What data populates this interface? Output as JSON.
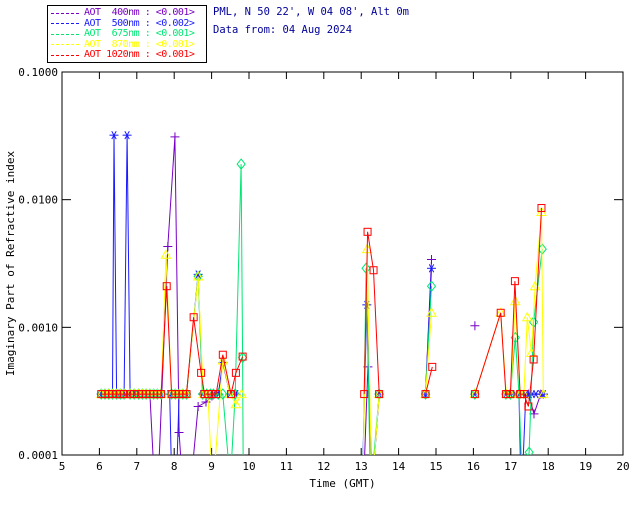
{
  "header": {
    "location_line": "PML, N 50 22', W 04 08', Alt 0m",
    "data_line": "Data from: 04 Aug 2024",
    "text_color": "#000099"
  },
  "chart_data": {
    "type": "line",
    "title": "",
    "xlabel": "Time (GMT)",
    "ylabel": "Imaginary Part of Refractive index",
    "xlim": [
      5,
      20
    ],
    "ylim": [
      0.0001,
      0.1
    ],
    "y_scale": "log",
    "grid": false,
    "legend_position": "top-left",
    "x_ticks": [
      5,
      6,
      7,
      8,
      9,
      10,
      11,
      12,
      13,
      14,
      15,
      16,
      17,
      18,
      19,
      20
    ],
    "y_ticks": [
      {
        "value": 0.1,
        "label": "0.1000"
      },
      {
        "value": 0.01,
        "label": "0.0100"
      },
      {
        "value": 0.001,
        "label": "0.0010"
      },
      {
        "value": 0.0001,
        "label": "0.0001"
      }
    ],
    "series": [
      {
        "name": "AOT 400nm",
        "legend_text": "AOT  400nm : <0.001>",
        "aot_value": "<0.001>",
        "color": "#7700c4",
        "marker": "plus",
        "points": [
          [
            6.05,
            0.0003
          ],
          [
            6.15,
            0.0003
          ],
          [
            6.25,
            0.0003
          ],
          [
            6.35,
            0.0003
          ],
          [
            6.44,
            0.0003
          ],
          [
            6.52,
            0.0003
          ],
          [
            6.6,
            0.0003
          ],
          [
            6.69,
            0.0003
          ],
          [
            6.8,
            0.0003
          ],
          [
            6.93,
            0.0003
          ],
          [
            7.05,
            0.0003
          ],
          [
            7.15,
            0.0003
          ],
          [
            7.25,
            0.0003
          ],
          [
            7.35,
            0.0003
          ],
          [
            7.46,
            7e-05
          ],
          [
            7.58,
            7e-05
          ],
          [
            7.83,
            0.0043
          ],
          [
            8.02,
            0.031
          ],
          [
            8.13,
            0.00015
          ],
          [
            8.22,
            6e-05
          ],
          [
            8.45,
            6e-05
          ],
          [
            8.64,
            0.00024
          ],
          [
            8.85,
            0.00026
          ],
          [
            9.01,
            0.00029
          ],
          [
            13.08,
            8e-05
          ],
          [
            13.18,
            0.00049
          ],
          [
            13.3,
            6e-05
          ],
          [
            13.48,
            0.0003
          ],
          [
            14.72,
            0.0003
          ],
          [
            14.88,
            0.0034
          ],
          [
            16.04,
            0.00103
          ],
          [
            17.25,
            0.0003
          ],
          [
            17.35,
            0.0003
          ],
          [
            17.47,
            0.0003
          ],
          [
            17.62,
            0.00021
          ],
          [
            17.8,
            0.0003
          ],
          [
            17.87,
            0.0003
          ]
        ]
      },
      {
        "name": "AOT 500nm",
        "legend_text": "AOT  500nm : <0.002>",
        "aot_value": "<0.002>",
        "color": "#1a1aff",
        "marker": "asterisk",
        "points": [
          [
            6.05,
            0.0003
          ],
          [
            6.15,
            0.0003
          ],
          [
            6.25,
            0.0003
          ],
          [
            6.35,
            0.0003
          ],
          [
            6.39,
            0.032
          ],
          [
            6.46,
            0.0003
          ],
          [
            6.56,
            0.0003
          ],
          [
            6.66,
            0.0003
          ],
          [
            6.74,
            0.032
          ],
          [
            6.82,
            0.0003
          ],
          [
            6.93,
            0.0003
          ],
          [
            7.05,
            0.0003
          ],
          [
            7.15,
            0.0003
          ],
          [
            7.25,
            0.0003
          ],
          [
            7.35,
            0.0003
          ],
          [
            7.45,
            0.0003
          ],
          [
            7.55,
            0.0003
          ],
          [
            7.65,
            0.0003
          ],
          [
            7.88,
            0.0003
          ],
          [
            7.94,
            5e-05
          ],
          [
            8.05,
            5e-05
          ],
          [
            8.13,
            0.0003
          ],
          [
            8.23,
            0.0003
          ],
          [
            8.33,
            0.0003
          ],
          [
            8.64,
            0.0026
          ],
          [
            8.76,
            0.0003
          ],
          [
            8.87,
            0.0003
          ],
          [
            8.97,
            0.0003
          ],
          [
            9.05,
            0.0003
          ],
          [
            9.18,
            0.0003
          ],
          [
            9.3,
            0.00053
          ],
          [
            9.49,
            0.0003
          ],
          [
            9.63,
            0.0003
          ],
          [
            9.65,
            0.0003
          ],
          [
            13.04,
            8e-05
          ],
          [
            13.15,
            0.0015
          ],
          [
            13.28,
            5e-05
          ],
          [
            13.48,
            0.0003
          ],
          [
            14.72,
            0.0003
          ],
          [
            14.88,
            0.0029
          ],
          [
            16.04,
            0.0003
          ],
          [
            16.87,
            0.0003
          ],
          [
            16.99,
            0.0003
          ],
          [
            17.12,
            0.0003
          ],
          [
            17.22,
            0.0003
          ],
          [
            17.28,
            4e-05
          ],
          [
            17.4,
            0.0003
          ],
          [
            17.5,
            0.0003
          ],
          [
            17.57,
            0.0003
          ],
          [
            17.67,
            0.0003
          ],
          [
            17.8,
            0.0003
          ],
          [
            17.87,
            0.0003
          ]
        ]
      },
      {
        "name": "AOT 675nm",
        "legend_text": "AOT  675nm : <0.001>",
        "aot_value": "<0.001>",
        "color": "#00e673",
        "marker": "diamond",
        "points": [
          [
            6.05,
            0.0003
          ],
          [
            6.15,
            0.0003
          ],
          [
            6.25,
            0.0003
          ],
          [
            6.35,
            0.0003
          ],
          [
            6.46,
            0.0003
          ],
          [
            6.56,
            0.0003
          ],
          [
            6.66,
            0.0003
          ],
          [
            6.82,
            0.0003
          ],
          [
            6.93,
            0.0003
          ],
          [
            7.05,
            0.0003
          ],
          [
            7.15,
            0.0003
          ],
          [
            7.25,
            0.0003
          ],
          [
            7.35,
            0.0003
          ],
          [
            7.45,
            0.0003
          ],
          [
            7.55,
            0.0003
          ],
          [
            7.65,
            0.0003
          ],
          [
            7.93,
            0.0003
          ],
          [
            8.03,
            0.0003
          ],
          [
            8.13,
            0.0003
          ],
          [
            8.23,
            0.0003
          ],
          [
            8.33,
            0.0003
          ],
          [
            8.64,
            0.0025
          ],
          [
            8.76,
            0.0003
          ],
          [
            8.87,
            0.0003
          ],
          [
            8.97,
            0.0003
          ],
          [
            9.05,
            0.0003
          ],
          [
            9.18,
            0.0003
          ],
          [
            9.3,
            0.0003
          ],
          [
            9.5,
            6e-05
          ],
          [
            9.63,
            0.0003
          ],
          [
            9.79,
            0.019
          ],
          [
            9.83,
            0.00058
          ],
          [
            9.85,
            4e-05
          ],
          [
            13.05,
            8e-05
          ],
          [
            13.13,
            0.0029
          ],
          [
            13.25,
            5e-05
          ],
          [
            13.48,
            0.0003
          ],
          [
            14.72,
            0.0003
          ],
          [
            14.88,
            0.0021
          ],
          [
            16.04,
            0.0003
          ],
          [
            16.87,
            0.0003
          ],
          [
            16.99,
            0.0003
          ],
          [
            17.12,
            0.00083
          ],
          [
            17.22,
            0.0003
          ],
          [
            17.33,
            4e-05
          ],
          [
            17.49,
            0.000105
          ],
          [
            17.61,
            0.0011
          ],
          [
            17.84,
            0.0041
          ]
        ]
      },
      {
        "name": "AOT 870nm",
        "legend_text": "AOT  870nm : <0.001>",
        "aot_value": "<0.001>",
        "color": "#ffff00",
        "marker": "triangle",
        "points": [
          [
            6.05,
            0.0003
          ],
          [
            6.15,
            0.0003
          ],
          [
            6.25,
            0.0003
          ],
          [
            6.35,
            0.0003
          ],
          [
            6.46,
            0.0003
          ],
          [
            6.56,
            0.0003
          ],
          [
            6.66,
            0.0003
          ],
          [
            6.82,
            0.0003
          ],
          [
            6.93,
            0.0003
          ],
          [
            7.05,
            0.0003
          ],
          [
            7.15,
            0.0003
          ],
          [
            7.25,
            0.0003
          ],
          [
            7.35,
            0.0003
          ],
          [
            7.45,
            0.0003
          ],
          [
            7.55,
            0.0003
          ],
          [
            7.65,
            0.0003
          ],
          [
            7.78,
            0.0037
          ],
          [
            7.93,
            0.0003
          ],
          [
            8.03,
            0.0003
          ],
          [
            8.13,
            0.0003
          ],
          [
            8.23,
            0.0003
          ],
          [
            8.33,
            0.0003
          ],
          [
            8.64,
            0.0025
          ],
          [
            8.78,
            0.0003
          ],
          [
            8.9,
            0.0003
          ],
          [
            9.03,
            5e-05
          ],
          [
            9.3,
            0.00055
          ],
          [
            9.49,
            0.0003
          ],
          [
            9.65,
            0.00025
          ],
          [
            9.8,
            0.0003
          ],
          [
            13.05,
            8e-05
          ],
          [
            13.16,
            0.0041
          ],
          [
            13.28,
            5e-05
          ],
          [
            13.48,
            0.0003
          ],
          [
            14.72,
            0.0003
          ],
          [
            14.88,
            0.0013
          ],
          [
            16.04,
            0.0003
          ],
          [
            16.73,
            0.0013
          ],
          [
            16.88,
            0.0003
          ],
          [
            17.0,
            0.0003
          ],
          [
            17.12,
            0.0016
          ],
          [
            17.25,
            0.0003
          ],
          [
            17.35,
            0.0003
          ],
          [
            17.44,
            0.0012
          ],
          [
            17.55,
            0.00063
          ],
          [
            17.65,
            0.0021
          ],
          [
            17.82,
            0.008
          ],
          [
            17.87,
            0.0003
          ]
        ]
      },
      {
        "name": "AOT 1020nm",
        "legend_text": "AOT 1020nm : <0.001>",
        "aot_value": "<0.001>",
        "color": "#ff0000",
        "marker": "square",
        "points": [
          [
            6.05,
            0.0003
          ],
          [
            6.15,
            0.0003
          ],
          [
            6.25,
            0.0003
          ],
          [
            6.35,
            0.0003
          ],
          [
            6.46,
            0.0003
          ],
          [
            6.56,
            0.0003
          ],
          [
            6.66,
            0.0003
          ],
          [
            6.82,
            0.0003
          ],
          [
            6.93,
            0.0003
          ],
          [
            7.05,
            0.0003
          ],
          [
            7.15,
            0.0003
          ],
          [
            7.25,
            0.0003
          ],
          [
            7.35,
            0.0003
          ],
          [
            7.45,
            0.0003
          ],
          [
            7.55,
            0.0003
          ],
          [
            7.65,
            0.0003
          ],
          [
            7.8,
            0.0021
          ],
          [
            7.93,
            0.0003
          ],
          [
            8.03,
            0.0003
          ],
          [
            8.13,
            0.0003
          ],
          [
            8.23,
            0.0003
          ],
          [
            8.33,
            0.0003
          ],
          [
            8.52,
            0.0012
          ],
          [
            8.72,
            0.00044
          ],
          [
            8.81,
            0.0003
          ],
          [
            8.9,
            0.0003
          ],
          [
            9.0,
            0.0003
          ],
          [
            9.12,
            0.0003
          ],
          [
            9.3,
            0.00061
          ],
          [
            9.52,
            0.0003
          ],
          [
            9.65,
            0.00044
          ],
          [
            9.83,
            0.00059
          ],
          [
            13.08,
            0.0003
          ],
          [
            13.17,
            0.0056
          ],
          [
            13.33,
            0.0028
          ],
          [
            13.48,
            0.0003
          ],
          [
            14.72,
            0.0003
          ],
          [
            14.9,
            0.00049
          ],
          [
            16.04,
            0.0003
          ],
          [
            16.73,
            0.0013
          ],
          [
            16.87,
            0.0003
          ],
          [
            16.99,
            0.0003
          ],
          [
            17.11,
            0.0023
          ],
          [
            17.25,
            0.0003
          ],
          [
            17.35,
            0.0003
          ],
          [
            17.47,
            0.00024
          ],
          [
            17.61,
            0.00056
          ],
          [
            17.82,
            0.0086
          ]
        ]
      }
    ]
  }
}
